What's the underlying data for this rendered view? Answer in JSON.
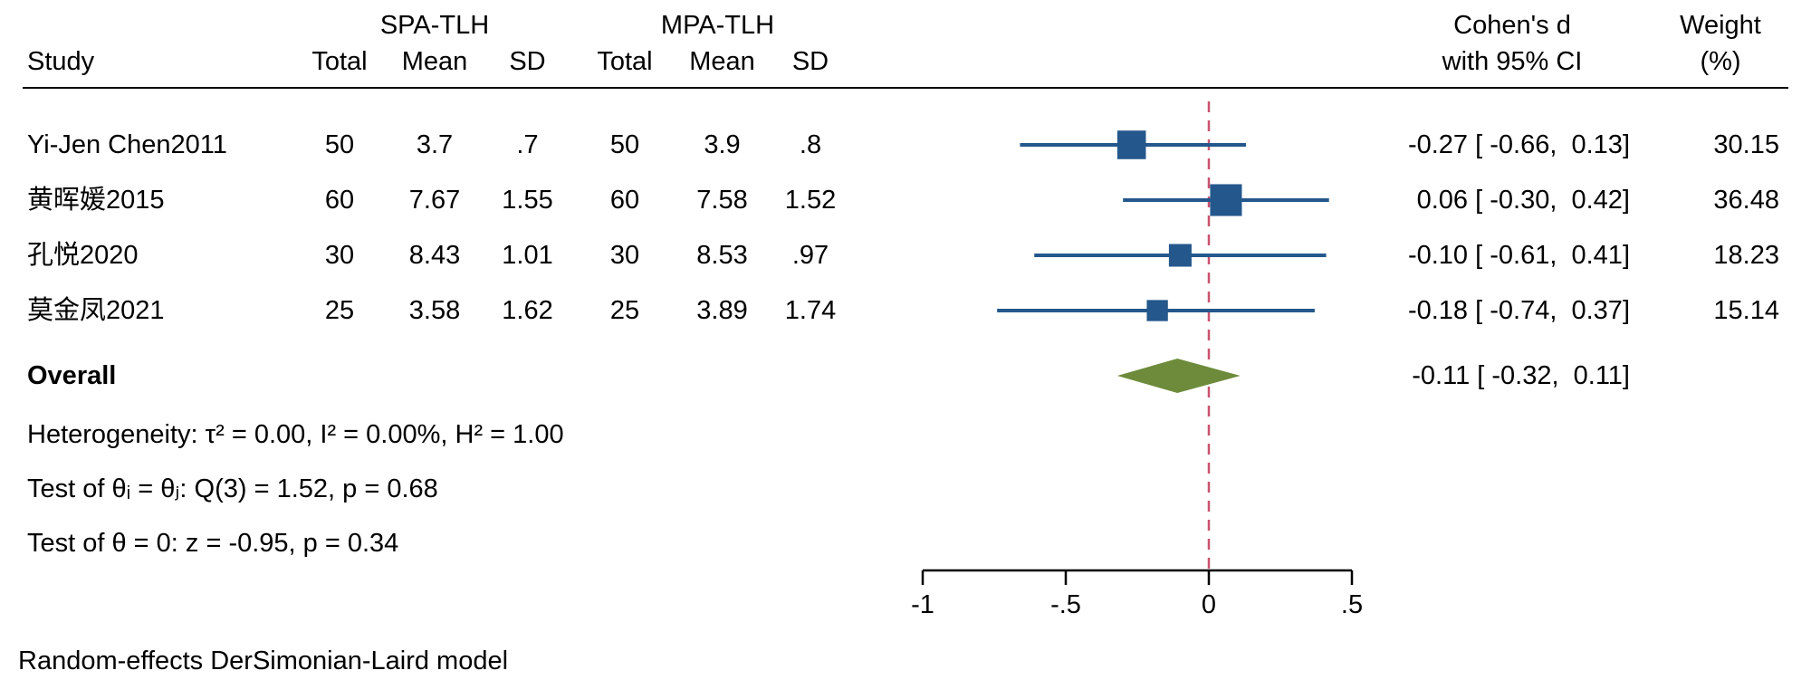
{
  "header": {
    "study": "Study",
    "group1": "SPA-TLH",
    "group2": "MPA-TLH",
    "cols": [
      "Total",
      "Mean",
      "SD"
    ],
    "effect_line1": "Cohen's d",
    "effect_line2": "with 95% CI",
    "weight_line1": "Weight",
    "weight_line2": "(%)"
  },
  "footer": {
    "model": "Random-effects DerSimonian-Laird model"
  },
  "chart_data": {
    "type": "forest",
    "effect_measure": "Cohen's d",
    "groups": [
      "SPA-TLH",
      "MPA-TLH"
    ],
    "studies": [
      {
        "name": "Yi-Jen Chen2011",
        "t1_total": "50",
        "t1_mean": "3.7",
        "t1_sd": ".7",
        "t2_total": "50",
        "t2_mean": "3.9",
        "t2_sd": ".8",
        "effect": -0.27,
        "ci_low": -0.66,
        "ci_high": 0.13,
        "effect_text": "-0.27 [ -0.66,  0.13]",
        "weight": 30.15,
        "weight_text": "30.15"
      },
      {
        "name": "黄晖媛2015",
        "t1_total": "60",
        "t1_mean": "7.67",
        "t1_sd": "1.55",
        "t2_total": "60",
        "t2_mean": "7.58",
        "t2_sd": "1.52",
        "effect": 0.06,
        "ci_low": -0.3,
        "ci_high": 0.42,
        "effect_text": "0.06 [ -0.30,  0.42]",
        "weight": 36.48,
        "weight_text": "36.48"
      },
      {
        "name": "孔悦2020",
        "t1_total": "30",
        "t1_mean": "8.43",
        "t1_sd": "1.01",
        "t2_total": "30",
        "t2_mean": "8.53",
        "t2_sd": ".97",
        "effect": -0.1,
        "ci_low": -0.61,
        "ci_high": 0.41,
        "effect_text": "-0.10 [ -0.61,  0.41]",
        "weight": 18.23,
        "weight_text": "18.23"
      },
      {
        "name": "莫金凤2021",
        "t1_total": "25",
        "t1_mean": "3.58",
        "t1_sd": "1.62",
        "t2_total": "25",
        "t2_mean": "3.89",
        "t2_sd": "1.74",
        "effect": -0.18,
        "ci_low": -0.74,
        "ci_high": 0.37,
        "effect_text": "-0.18 [ -0.74,  0.37]",
        "weight": 15.14,
        "weight_text": "15.14"
      }
    ],
    "overall": {
      "label": "Overall",
      "effect": -0.11,
      "ci_low": -0.32,
      "ci_high": 0.11,
      "effect_text": "-0.11 [ -0.32,  0.11]"
    },
    "stats": {
      "heterogeneity": "Heterogeneity: τ² = 0.00, I² = 0.00%, H² = 1.00",
      "test_thetas": "Test of θᵢ = θⱼ: Q(3) = 1.52, p = 0.68",
      "test_zero": "Test of θ = 0: z = -0.95, p = 0.34"
    },
    "axis": {
      "ticks": [
        -1,
        -0.5,
        0,
        0.5
      ],
      "tick_labels": [
        "-1",
        "-.5",
        "0",
        ".5"
      ],
      "zero_line": 0,
      "xlim": [
        -1.16,
        0.65
      ],
      "grid": false
    },
    "colors": {
      "marker": "#24588c",
      "ci": "#24588c",
      "diamond": "#6d8b3b",
      "zero_line": "#c9536e",
      "axis": "#000000"
    }
  }
}
